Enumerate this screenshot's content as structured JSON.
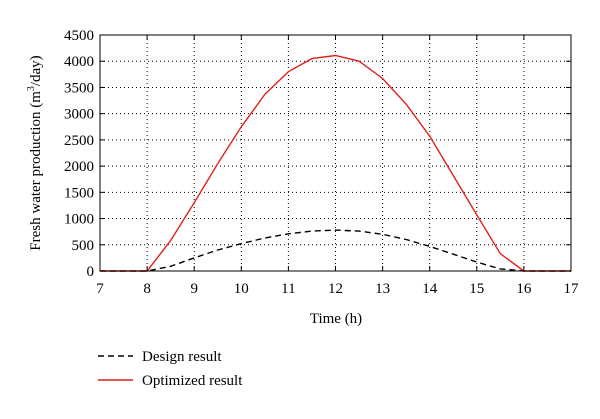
{
  "chart_data": {
    "type": "line",
    "title": "",
    "xlabel": "Time (h)",
    "ylabel": "Fresh water production (m",
    "ylabel_sup": "3",
    "ylabel_tail": "/day)",
    "xlim": [
      7,
      17
    ],
    "ylim": [
      0,
      4500
    ],
    "xticks": [
      7,
      8,
      9,
      10,
      11,
      12,
      13,
      14,
      15,
      16,
      17
    ],
    "yticks": [
      0,
      500,
      1000,
      1500,
      2000,
      2500,
      3000,
      3500,
      4000,
      4500
    ],
    "grid": true,
    "legend_position": "bottom-left-below",
    "series": [
      {
        "name": "Design result",
        "style": "dashed",
        "color": "#000000",
        "x": [
          7,
          8,
          8.5,
          9,
          9.5,
          10,
          10.5,
          11,
          11.5,
          12,
          12.5,
          13,
          13.5,
          14,
          14.5,
          15,
          15.5,
          16,
          17
        ],
        "y": [
          0,
          0,
          90,
          250,
          400,
          520,
          630,
          710,
          760,
          780,
          760,
          700,
          600,
          470,
          320,
          170,
          40,
          0,
          0
        ]
      },
      {
        "name": "Optimized result",
        "style": "solid",
        "color": "#e2201c",
        "x": [
          7,
          8,
          8.5,
          9,
          9.5,
          10,
          10.5,
          11,
          11.5,
          12,
          12.5,
          13,
          13.5,
          14,
          14.5,
          15,
          15.5,
          16,
          17
        ],
        "y": [
          0,
          0,
          580,
          1300,
          2050,
          2750,
          3370,
          3800,
          4050,
          4110,
          4000,
          3670,
          3180,
          2570,
          1820,
          1070,
          330,
          0,
          0
        ]
      }
    ]
  }
}
